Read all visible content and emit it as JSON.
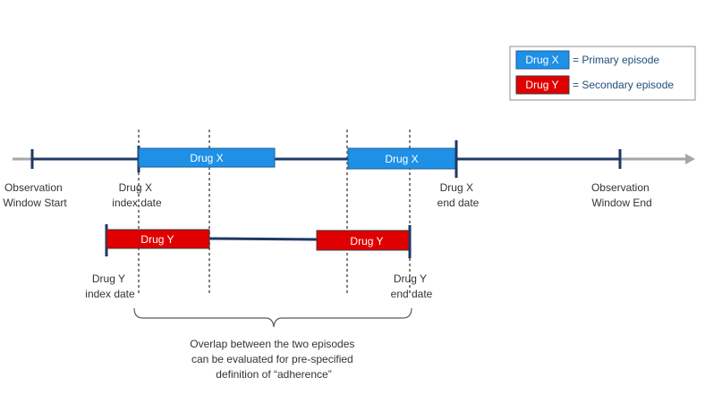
{
  "colors": {
    "timeline": "#1f3864",
    "arrow": "#a6a6a6",
    "drug_x": "#1e90e6",
    "drug_x_border": "#1f5f99",
    "drug_y": "#e00000",
    "drug_y_border": "#3c3c3c",
    "guide": "#7f7f7f",
    "brace": "#595959"
  },
  "legend": {
    "items": [
      {
        "swatch_label": "Drug X",
        "description": "= Primary episode",
        "color": "#1e90e6"
      },
      {
        "swatch_label": "Drug Y",
        "description": "= Secondary episode",
        "color": "#e00000"
      }
    ]
  },
  "drug_x": {
    "bar_labels": [
      "Drug X",
      "Drug X"
    ],
    "index_label": [
      "Drug X",
      "index date"
    ],
    "end_label": [
      "Drug X",
      "end date"
    ]
  },
  "drug_y": {
    "bar_labels": [
      "Drug Y",
      "Drug Y"
    ],
    "index_label": [
      "Drug Y",
      "index date"
    ],
    "end_label": [
      "Drug Y",
      "end date"
    ]
  },
  "observation": {
    "start_label": [
      "Observation",
      "Window Start"
    ],
    "end_label": [
      "Observation",
      "Window End"
    ]
  },
  "overlap_note": [
    "Overlap between the two episodes",
    "can be evaluated for pre-specified",
    "definition of “adherence”"
  ]
}
